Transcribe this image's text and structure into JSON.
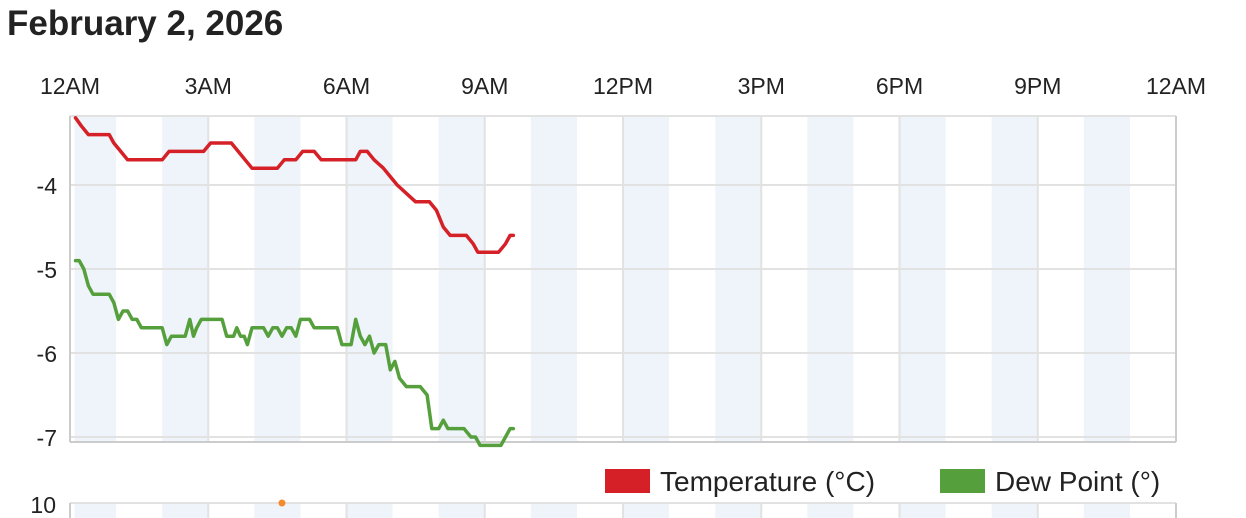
{
  "page": {
    "title": "February 2, 2026"
  },
  "colors": {
    "temperature": "#d62028",
    "dew_point": "#55a03d",
    "band": "#eef4f9",
    "grid": "#e2e2e2",
    "axis": "#cccccc",
    "marker": "#f58a2e"
  },
  "chart_data": [
    {
      "type": "line",
      "title": "",
      "x_tick_labels": [
        "12AM",
        "3AM",
        "6AM",
        "9AM",
        "12PM",
        "3PM",
        "6PM",
        "9PM",
        "12AM"
      ],
      "x_range_hours": [
        0,
        24
      ],
      "y_tick_labels": [
        "-4",
        "-5",
        "-6",
        "-7"
      ],
      "ylim": [
        -7.1,
        -3.2
      ],
      "grid": true,
      "legend_position": "bottom-right",
      "legend": [
        "Temperature (°C)",
        "Dew Point (°)"
      ],
      "series": [
        {
          "name": "Temperature (°C)",
          "color": "#d62028",
          "points": [
            [
              0.12,
              -3.2
            ],
            [
              0.25,
              -3.3
            ],
            [
              0.4,
              -3.4
            ],
            [
              0.85,
              -3.4
            ],
            [
              0.95,
              -3.5
            ],
            [
              1.1,
              -3.6
            ],
            [
              1.25,
              -3.7
            ],
            [
              2.0,
              -3.7
            ],
            [
              2.15,
              -3.6
            ],
            [
              2.9,
              -3.6
            ],
            [
              3.05,
              -3.5
            ],
            [
              3.5,
              -3.5
            ],
            [
              3.65,
              -3.6
            ],
            [
              3.8,
              -3.7
            ],
            [
              3.95,
              -3.8
            ],
            [
              4.5,
              -3.8
            ],
            [
              4.65,
              -3.7
            ],
            [
              4.9,
              -3.7
            ],
            [
              5.05,
              -3.6
            ],
            [
              5.3,
              -3.6
            ],
            [
              5.45,
              -3.7
            ],
            [
              6.2,
              -3.7
            ],
            [
              6.3,
              -3.6
            ],
            [
              6.45,
              -3.6
            ],
            [
              6.6,
              -3.7
            ],
            [
              6.8,
              -3.8
            ],
            [
              6.95,
              -3.9
            ],
            [
              7.1,
              -4.0
            ],
            [
              7.3,
              -4.1
            ],
            [
              7.5,
              -4.2
            ],
            [
              7.8,
              -4.2
            ],
            [
              7.95,
              -4.3
            ],
            [
              8.1,
              -4.5
            ],
            [
              8.25,
              -4.6
            ],
            [
              8.6,
              -4.6
            ],
            [
              8.75,
              -4.7
            ],
            [
              8.85,
              -4.8
            ],
            [
              9.3,
              -4.8
            ],
            [
              9.45,
              -4.7
            ],
            [
              9.55,
              -4.6
            ],
            [
              9.62,
              -4.6
            ]
          ]
        },
        {
          "name": "Dew Point (°)",
          "color": "#55a03d",
          "points": [
            [
              0.12,
              -4.9
            ],
            [
              0.2,
              -4.9
            ],
            [
              0.3,
              -5.0
            ],
            [
              0.4,
              -5.2
            ],
            [
              0.5,
              -5.3
            ],
            [
              0.85,
              -5.3
            ],
            [
              0.95,
              -5.4
            ],
            [
              1.05,
              -5.6
            ],
            [
              1.15,
              -5.5
            ],
            [
              1.25,
              -5.5
            ],
            [
              1.35,
              -5.6
            ],
            [
              1.45,
              -5.6
            ],
            [
              1.55,
              -5.7
            ],
            [
              2.0,
              -5.7
            ],
            [
              2.1,
              -5.9
            ],
            [
              2.2,
              -5.8
            ],
            [
              2.5,
              -5.8
            ],
            [
              2.6,
              -5.6
            ],
            [
              2.68,
              -5.8
            ],
            [
              2.75,
              -5.7
            ],
            [
              2.85,
              -5.6
            ],
            [
              3.3,
              -5.6
            ],
            [
              3.4,
              -5.8
            ],
            [
              3.55,
              -5.8
            ],
            [
              3.62,
              -5.7
            ],
            [
              3.7,
              -5.8
            ],
            [
              3.78,
              -5.8
            ],
            [
              3.85,
              -5.9
            ],
            [
              3.95,
              -5.7
            ],
            [
              4.2,
              -5.7
            ],
            [
              4.3,
              -5.8
            ],
            [
              4.4,
              -5.7
            ],
            [
              4.5,
              -5.7
            ],
            [
              4.6,
              -5.8
            ],
            [
              4.7,
              -5.7
            ],
            [
              4.8,
              -5.7
            ],
            [
              4.9,
              -5.8
            ],
            [
              5.0,
              -5.6
            ],
            [
              5.2,
              -5.6
            ],
            [
              5.3,
              -5.7
            ],
            [
              5.8,
              -5.7
            ],
            [
              5.9,
              -5.9
            ],
            [
              6.1,
              -5.9
            ],
            [
              6.2,
              -5.6
            ],
            [
              6.3,
              -5.8
            ],
            [
              6.4,
              -5.9
            ],
            [
              6.5,
              -5.8
            ],
            [
              6.6,
              -6.0
            ],
            [
              6.7,
              -5.9
            ],
            [
              6.85,
              -5.9
            ],
            [
              6.95,
              -6.2
            ],
            [
              7.05,
              -6.1
            ],
            [
              7.15,
              -6.3
            ],
            [
              7.3,
              -6.4
            ],
            [
              7.6,
              -6.4
            ],
            [
              7.75,
              -6.5
            ],
            [
              7.85,
              -6.9
            ],
            [
              8.0,
              -6.9
            ],
            [
              8.1,
              -6.8
            ],
            [
              8.2,
              -6.9
            ],
            [
              8.55,
              -6.9
            ],
            [
              8.7,
              -7.0
            ],
            [
              8.8,
              -7.0
            ],
            [
              8.9,
              -7.1
            ],
            [
              9.35,
              -7.1
            ],
            [
              9.45,
              -7.0
            ],
            [
              9.55,
              -6.9
            ],
            [
              9.62,
              -6.9
            ]
          ]
        }
      ]
    },
    {
      "type": "line",
      "title": "",
      "x_range_hours": [
        0,
        24
      ],
      "y_tick_labels": [
        "10"
      ],
      "markers": [
        {
          "x_hours": 4.6,
          "value": 10,
          "color": "#f58a2e"
        }
      ]
    }
  ]
}
